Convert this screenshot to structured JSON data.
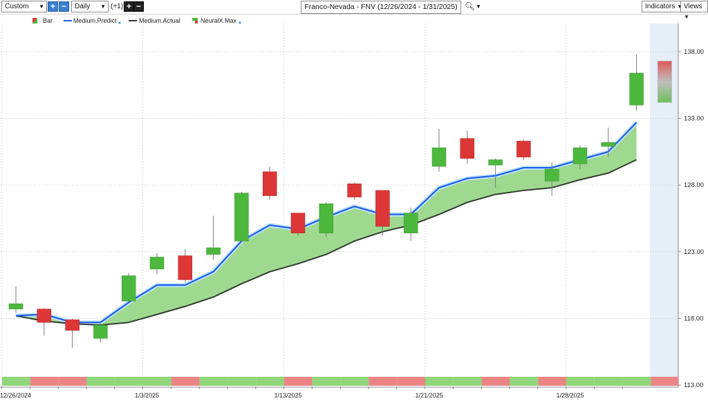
{
  "toolbar": {
    "period_select": "Custom",
    "interval_select": "Daily",
    "offset_label": "(+1)",
    "title": "Franco-Nevada - FNV (12/26/2024 - 1/31/2025)",
    "indicators_label": "Indicators",
    "views_label": "Views"
  },
  "legend": {
    "bar": "Bar",
    "predict": "Medium.Predict",
    "actual": "Medium.Actual",
    "neural": "NeuralX.Max"
  },
  "colors": {
    "up": "#4cb83e",
    "down": "#dd3636",
    "predict_line": "#1f5fe6",
    "actual_line": "#2f3a2f",
    "band_fill": "#9fd98f",
    "bar_green": "#8fd67a",
    "bar_red": "#eb8585"
  },
  "chart_data": {
    "type": "candlestick",
    "ylim": [
      113,
      139
    ],
    "yticks": [
      "113.00",
      "118.00",
      "123.00",
      "128.00",
      "133.00",
      "138.00"
    ],
    "xtick_labels": [
      {
        "index": 0,
        "label": "12/26/2024"
      },
      {
        "index": 5,
        "label": "1/3/2025"
      },
      {
        "index": 10,
        "label": "1/13/2025"
      },
      {
        "index": 15,
        "label": "1/21/2025"
      },
      {
        "index": 20,
        "label": "1/28/2025"
      }
    ],
    "candles": [
      {
        "o": 118.7,
        "h": 120.4,
        "l": 118.4,
        "c": 119.1
      },
      {
        "o": 118.7,
        "h": 118.8,
        "l": 116.7,
        "c": 117.7
      },
      {
        "o": 117.9,
        "h": 118.0,
        "l": 115.8,
        "c": 117.1
      },
      {
        "o": 116.5,
        "h": 117.8,
        "l": 116.2,
        "c": 117.5
      },
      {
        "o": 119.3,
        "h": 121.4,
        "l": 119.2,
        "c": 121.2
      },
      {
        "o": 121.7,
        "h": 122.9,
        "l": 121.3,
        "c": 122.6
      },
      {
        "o": 122.7,
        "h": 123.2,
        "l": 120.7,
        "c": 120.9
      },
      {
        "o": 122.8,
        "h": 125.7,
        "l": 122.4,
        "c": 123.3
      },
      {
        "o": 123.8,
        "h": 127.5,
        "l": 123.7,
        "c": 127.4
      },
      {
        "o": 129.0,
        "h": 129.4,
        "l": 126.9,
        "c": 127.2
      },
      {
        "o": 125.9,
        "h": 125.9,
        "l": 124.2,
        "c": 124.4
      },
      {
        "o": 124.4,
        "h": 126.7,
        "l": 124.1,
        "c": 126.6
      },
      {
        "o": 128.1,
        "h": 128.2,
        "l": 126.9,
        "c": 127.1
      },
      {
        "o": 127.6,
        "h": 127.6,
        "l": 124.2,
        "c": 124.9
      },
      {
        "o": 124.4,
        "h": 126.3,
        "l": 123.8,
        "c": 125.9
      },
      {
        "o": 129.4,
        "h": 132.2,
        "l": 129.0,
        "c": 130.8
      },
      {
        "o": 131.5,
        "h": 132.1,
        "l": 129.6,
        "c": 130.0
      },
      {
        "o": 129.5,
        "h": 130.0,
        "l": 127.8,
        "c": 129.9
      },
      {
        "o": 131.3,
        "h": 131.4,
        "l": 129.9,
        "c": 130.1
      },
      {
        "o": 128.3,
        "h": 129.7,
        "l": 127.2,
        "c": 129.2
      },
      {
        "o": 129.6,
        "h": 131.0,
        "l": 129.2,
        "c": 130.8
      },
      {
        "o": 130.9,
        "h": 132.3,
        "l": 130.1,
        "c": 131.2
      },
      {
        "o": 134.0,
        "h": 137.8,
        "l": 133.6,
        "c": 136.4
      }
    ],
    "series": [
      {
        "name": "Medium.Predict",
        "values": [
          118.2,
          118.3,
          117.7,
          117.7,
          119.2,
          120.5,
          120.5,
          121.5,
          123.8,
          125.0,
          124.7,
          125.6,
          126.4,
          125.8,
          125.8,
          127.8,
          128.5,
          128.7,
          129.3,
          129.3,
          129.9,
          130.5,
          132.7
        ]
      },
      {
        "name": "Medium.Actual",
        "values": [
          118.2,
          117.8,
          117.6,
          117.5,
          117.7,
          118.3,
          118.9,
          119.6,
          120.6,
          121.5,
          122.1,
          122.8,
          123.8,
          124.5,
          125.0,
          125.8,
          126.7,
          127.3,
          127.6,
          127.8,
          128.4,
          128.9,
          129.9
        ]
      }
    ],
    "forecast_candle": {
      "o": 134.2,
      "h": 137.3,
      "l": 134.2,
      "c": 137.3
    },
    "forecast_bar_color": "red",
    "bar_strip": [
      "green",
      "red",
      "red",
      "green",
      "green",
      "green",
      "red",
      "green",
      "green",
      "green",
      "red",
      "green",
      "green",
      "red",
      "red",
      "green",
      "green",
      "red",
      "green",
      "red",
      "green",
      "green",
      "green"
    ]
  }
}
